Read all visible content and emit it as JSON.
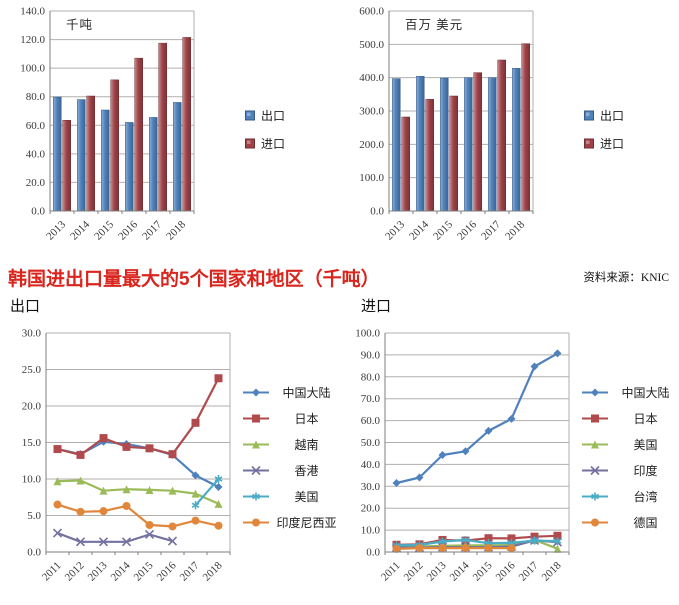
{
  "header": {
    "title": "韩国进出口量最大的5个国家和地区（千吨）",
    "source": "资料来源：KNIC"
  },
  "sections": {
    "export_label": "出口",
    "import_label": "进口"
  },
  "palette": {
    "bar_blue": "#4f81bd",
    "bar_red": "#9e4247",
    "line_blue": "#4f81bd",
    "line_red": "#b04a4d",
    "line_green": "#9bbb59",
    "line_purple": "#73719f",
    "line_cyan": "#4bacc6",
    "line_orange": "#e0873c",
    "grid": "#b0afad",
    "axis": "#7f7f7f",
    "title_red": "#d9251d"
  },
  "chart_data": [
    {
      "id": "volume",
      "type": "bar",
      "unit_label": "千吨",
      "categories": [
        "2013",
        "2014",
        "2015",
        "2016",
        "2017",
        "2018"
      ],
      "series": [
        {
          "name": "出口",
          "color": "#4f81bd",
          "values": [
            79.8,
            78.0,
            70.7,
            62.0,
            65.5,
            76.0
          ]
        },
        {
          "name": "进口",
          "color": "#9e4247",
          "values": [
            63.5,
            80.5,
            91.8,
            107.0,
            117.5,
            121.5
          ]
        }
      ],
      "ylim": [
        0,
        140
      ],
      "ystep": 20,
      "grid": true,
      "legend_position": "right"
    },
    {
      "id": "value",
      "type": "bar",
      "unit_label": "百万 美元",
      "categories": [
        "2013",
        "2014",
        "2015",
        "2016",
        "2017",
        "2018"
      ],
      "series": [
        {
          "name": "出口",
          "color": "#4f81bd",
          "values": [
            397,
            404,
            399,
            400,
            400,
            428
          ]
        },
        {
          "name": "进口",
          "color": "#9e4247",
          "values": [
            282,
            335,
            345,
            415,
            453,
            502
          ]
        }
      ],
      "ylim": [
        0,
        600
      ],
      "ystep": 100,
      "grid": true,
      "legend_position": "right"
    },
    {
      "id": "export-lines",
      "type": "line",
      "title": "出口",
      "categories": [
        "2011",
        "2012",
        "2013",
        "2014",
        "2015",
        "2016",
        "2017",
        "2018"
      ],
      "series": [
        {
          "name": "中国大陆",
          "color": "#4f81bd",
          "marker": "diamond",
          "values": [
            14.1,
            13.4,
            15.1,
            14.8,
            14.2,
            13.3,
            10.5,
            8.9
          ]
        },
        {
          "name": "日本",
          "color": "#b04a4d",
          "marker": "square",
          "values": [
            14.1,
            13.3,
            15.6,
            14.4,
            14.2,
            13.4,
            17.7,
            23.8
          ]
        },
        {
          "name": "越南",
          "color": "#9bbb59",
          "marker": "triangle",
          "values": [
            9.7,
            9.8,
            8.4,
            8.6,
            8.5,
            8.4,
            8.0,
            6.6
          ]
        },
        {
          "name": "香港",
          "color": "#73719f",
          "marker": "x",
          "values": [
            2.6,
            1.4,
            1.4,
            1.4,
            2.4,
            1.5,
            null,
            null
          ]
        },
        {
          "name": "美国",
          "color": "#4bacc6",
          "marker": "asterisk",
          "values": [
            null,
            null,
            null,
            null,
            null,
            null,
            6.4,
            10.0
          ]
        },
        {
          "name": "印度尼西亚",
          "color": "#e0873c",
          "marker": "circle",
          "values": [
            6.5,
            5.5,
            5.6,
            6.3,
            3.7,
            3.5,
            4.3,
            3.6
          ]
        }
      ],
      "ylim": [
        0,
        30
      ],
      "ystep": 5,
      "grid": true,
      "legend_position": "right"
    },
    {
      "id": "import-lines",
      "type": "line",
      "title": "进口",
      "categories": [
        "2011",
        "2012",
        "2013",
        "2014",
        "2015",
        "2016",
        "2017",
        "2018"
      ],
      "series": [
        {
          "name": "中国大陆",
          "color": "#4f81bd",
          "marker": "diamond",
          "values": [
            31.5,
            34.0,
            44.3,
            46.0,
            55.3,
            60.8,
            84.7,
            90.7
          ]
        },
        {
          "name": "日本",
          "color": "#b04a4d",
          "marker": "square",
          "values": [
            3.3,
            3.5,
            5.5,
            5.2,
            6.3,
            6.2,
            7.0,
            7.4
          ]
        },
        {
          "name": "美国",
          "color": "#9bbb59",
          "marker": "triangle",
          "values": [
            2.4,
            2.5,
            2.8,
            3.0,
            3.0,
            3.2,
            5.5,
            1.5
          ]
        },
        {
          "name": "印度",
          "color": "#73719f",
          "marker": "x",
          "values": [
            2.0,
            2.0,
            2.2,
            2.2,
            2.2,
            2.5,
            5.3,
            4.5
          ]
        },
        {
          "name": "台湾",
          "color": "#4bacc6",
          "marker": "asterisk",
          "values": [
            3.0,
            3.2,
            4.8,
            5.5,
            4.0,
            4.2,
            5.2,
            5.0
          ]
        },
        {
          "name": "德国",
          "color": "#e0873c",
          "marker": "circle",
          "values": [
            1.4,
            1.8,
            1.8,
            1.8,
            1.8,
            1.8,
            null,
            null
          ]
        }
      ],
      "ylim": [
        0,
        100
      ],
      "ystep": 10,
      "grid": true,
      "legend_position": "right"
    }
  ]
}
